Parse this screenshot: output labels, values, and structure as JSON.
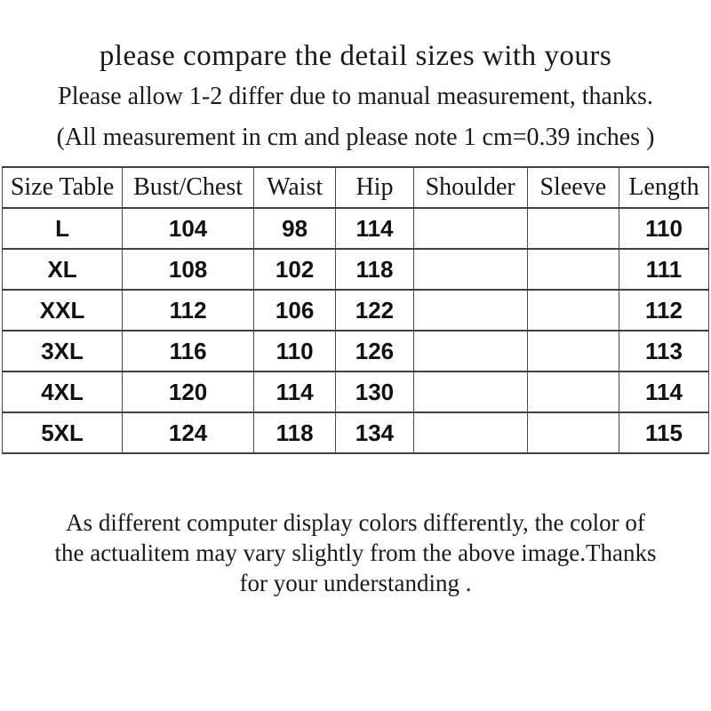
{
  "header": {
    "title": "please compare the detail sizes with yours",
    "tolerance_note": "Please allow 1-2 differ due to manual measurement, thanks.",
    "unit_note": "(All measurement in cm and please note 1 cm=0.39 inches )"
  },
  "table": {
    "columns": [
      "Size Table",
      "Bust/Chest",
      "Waist",
      "Hip",
      "Shoulder",
      "Sleeve",
      "Length"
    ],
    "rows": [
      [
        "L",
        "104",
        "98",
        "114",
        "",
        "",
        "110"
      ],
      [
        "XL",
        "108",
        "102",
        "118",
        "",
        "",
        "111"
      ],
      [
        "XXL",
        "112",
        "106",
        "122",
        "",
        "",
        "112"
      ],
      [
        "3XL",
        "116",
        "110",
        "126",
        "",
        "",
        "113"
      ],
      [
        "4XL",
        "120",
        "114",
        "130",
        "",
        "",
        "114"
      ],
      [
        "5XL",
        "124",
        "118",
        "134",
        "",
        "",
        "115"
      ]
    ]
  },
  "footer": {
    "lines": [
      "As different computer display colors differently, the color of",
      "the actualitem may vary slightly from the above image.Thanks",
      "for your understanding ."
    ]
  },
  "colors": {
    "background": "#fefefe",
    "text": "#1a1a1a",
    "grid": "#3f3f3f"
  }
}
